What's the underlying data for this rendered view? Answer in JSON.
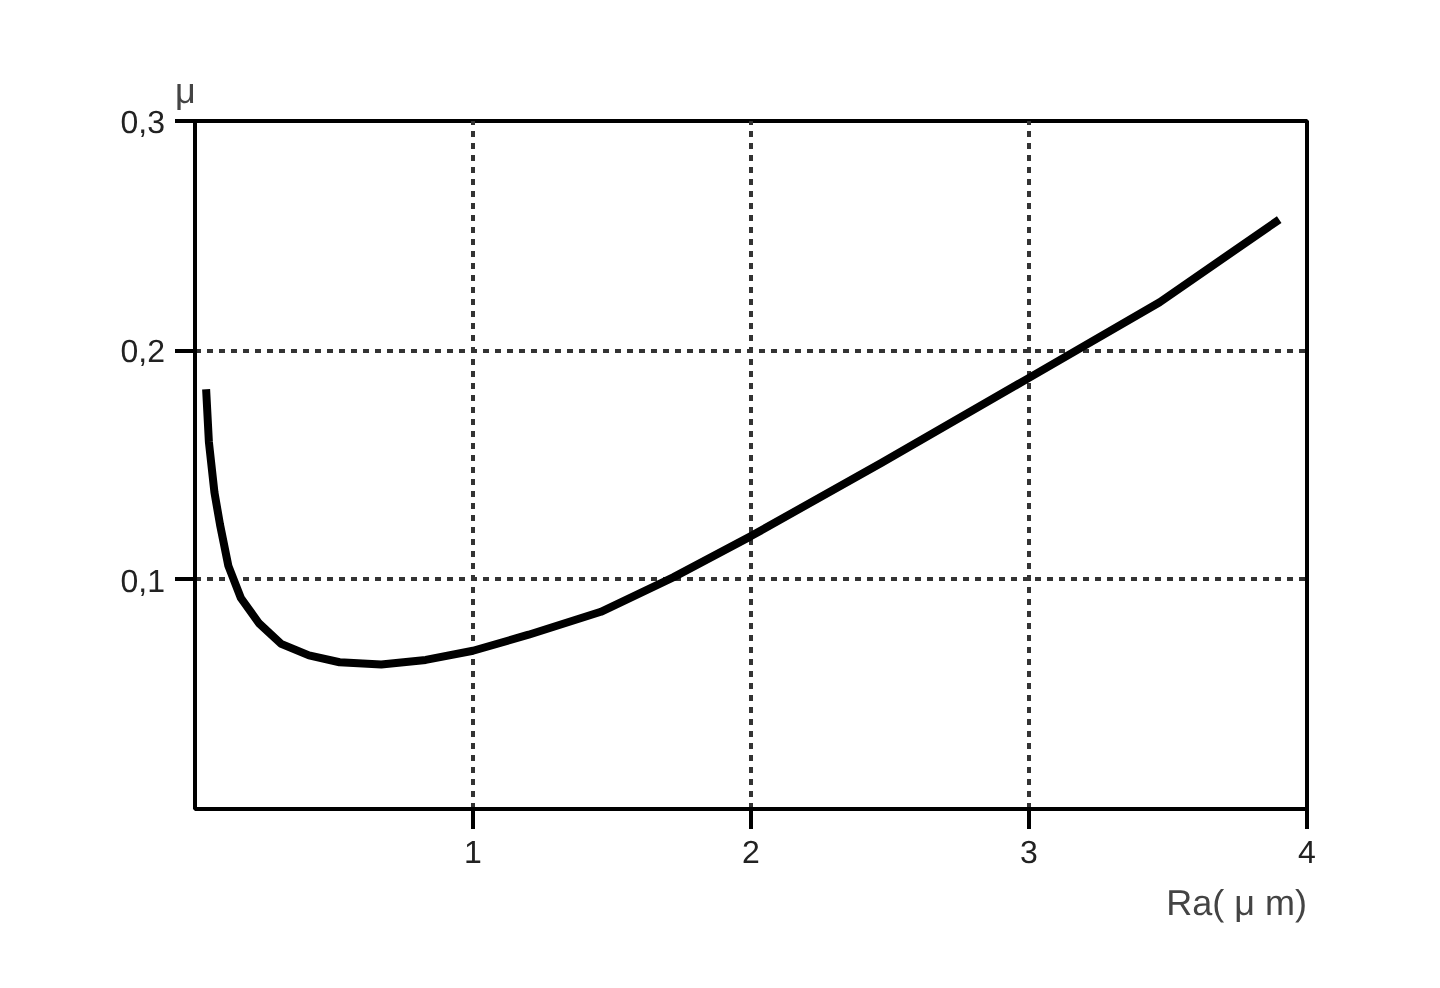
{
  "chart_data": {
    "type": "line",
    "xlabel": "Ra( μ m)",
    "ylabel": "μ",
    "x": [
      0.04,
      0.05,
      0.07,
      0.09,
      0.12,
      0.165,
      0.23,
      0.31,
      0.41,
      0.52,
      0.67,
      0.83,
      1.0,
      1.2,
      1.46,
      1.72,
      2.0,
      2.47,
      3.0,
      3.47,
      3.9
    ],
    "series": [
      {
        "color": "#000000",
        "values": [
          0.183,
          0.16,
          0.138,
          0.124,
          0.106,
          0.092,
          0.081,
          0.072,
          0.067,
          0.064,
          0.063,
          0.065,
          0.069,
          0.076,
          0.086,
          0.101,
          0.119,
          0.151,
          0.188,
          0.221,
          0.257
        ]
      }
    ],
    "xlim": [
      0,
      4
    ],
    "ylim": [
      0,
      0.3
    ],
    "xticks": [
      1,
      2,
      3,
      4
    ],
    "yticks": [
      {
        "value": 0.1,
        "label": "0,1"
      },
      {
        "value": 0.2,
        "label": "0,2"
      },
      {
        "value": 0.3,
        "label": "0,3"
      }
    ],
    "grid": true,
    "line_style": "solid"
  }
}
